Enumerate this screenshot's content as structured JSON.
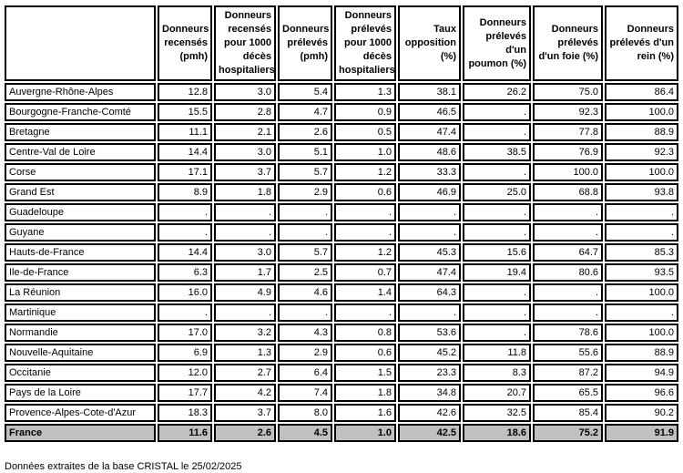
{
  "table": {
    "columns": [
      "",
      "Donneurs recensés (pmh)",
      "Donneurs recensés pour 1000 décès hospitaliers",
      "Donneurs prélevés (pmh)",
      "Donneurs prélevés pour 1000 décès hospitaliers",
      "Taux opposition (%)",
      "Donneurs prélevés d'un poumon (%)",
      "Donneurs prélevés d'un foie (%)",
      "Donneurs prélevés d'un rein (%)"
    ],
    "rows": [
      {
        "region": "Auvergne-Rhône-Alpes",
        "values": [
          "12.8",
          "3.0",
          "5.4",
          "1.3",
          "38.1",
          "26.2",
          "75.0",
          "86.4"
        ]
      },
      {
        "region": "Bourgogne-Franche-Comté",
        "values": [
          "15.5",
          "2.8",
          "4.7",
          "0.9",
          "46.5",
          ".",
          "92.3",
          "100.0"
        ]
      },
      {
        "region": "Bretagne",
        "values": [
          "11.1",
          "2.1",
          "2.6",
          "0.5",
          "47.4",
          ".",
          "77.8",
          "88.9"
        ]
      },
      {
        "region": "Centre-Val de Loire",
        "values": [
          "14.4",
          "3.0",
          "5.1",
          "1.0",
          "48.6",
          "38.5",
          "76.9",
          "92.3"
        ]
      },
      {
        "region": "Corse",
        "values": [
          "17.1",
          "3.7",
          "5.7",
          "1.2",
          "33.3",
          ".",
          "100.0",
          "100.0"
        ]
      },
      {
        "region": "Grand Est",
        "values": [
          "8.9",
          "1.8",
          "2.9",
          "0.6",
          "46.9",
          "25.0",
          "68.8",
          "93.8"
        ]
      },
      {
        "region": "Guadeloupe",
        "values": [
          ".",
          ".",
          ".",
          ".",
          ".",
          ".",
          ".",
          "."
        ]
      },
      {
        "region": "Guyane",
        "values": [
          ".",
          ".",
          ".",
          ".",
          ".",
          ".",
          ".",
          "."
        ]
      },
      {
        "region": "Hauts-de-France",
        "values": [
          "14.4",
          "3.0",
          "5.7",
          "1.2",
          "45.3",
          "15.6",
          "64.7",
          "85.3"
        ]
      },
      {
        "region": "Ile-de-France",
        "values": [
          "6.3",
          "1.7",
          "2.5",
          "0.7",
          "47.4",
          "19.4",
          "80.6",
          "93.5"
        ]
      },
      {
        "region": "La Réunion",
        "values": [
          "16.0",
          "4.9",
          "4.6",
          "1.4",
          "64.3",
          ".",
          ".",
          "100.0"
        ]
      },
      {
        "region": "Martinique",
        "values": [
          ".",
          ".",
          ".",
          ".",
          ".",
          ".",
          ".",
          "."
        ]
      },
      {
        "region": "Normandie",
        "values": [
          "17.0",
          "3.2",
          "4.3",
          "0.8",
          "53.6",
          ".",
          "78.6",
          "100.0"
        ]
      },
      {
        "region": "Nouvelle-Aquitaine",
        "values": [
          "6.9",
          "1.3",
          "2.9",
          "0.6",
          "45.2",
          "11.8",
          "55.6",
          "88.9"
        ]
      },
      {
        "region": "Occitanie",
        "values": [
          "12.0",
          "2.7",
          "6.4",
          "1.5",
          "23.3",
          "8.3",
          "87.2",
          "94.9"
        ]
      },
      {
        "region": "Pays de la Loire",
        "values": [
          "17.7",
          "4.2",
          "7.4",
          "1.8",
          "34.8",
          "20.7",
          "65.5",
          "96.6"
        ]
      },
      {
        "region": "Provence-Alpes-Cote-d'Azur",
        "values": [
          "18.3",
          "3.7",
          "8.0",
          "1.6",
          "42.6",
          "32.5",
          "85.4",
          "90.2"
        ]
      }
    ],
    "total_row": {
      "region": "France",
      "values": [
        "11.6",
        "2.6",
        "4.5",
        "1.0",
        "42.5",
        "18.6",
        "75.2",
        "91.9"
      ]
    },
    "colors": {
      "total_row_background": "#c0c0c0",
      "border": "#000000",
      "cell_background": "#ffffff"
    }
  },
  "footer": {
    "note": "Données extraites de la base CRISTAL le 25/02/2025"
  }
}
